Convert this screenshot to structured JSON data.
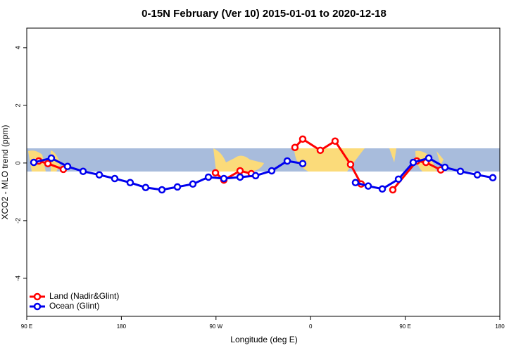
{
  "chart_data": {
    "type": "line",
    "title": "0-15N February (Ver 10)   2015-01-01 to 2020-12-18",
    "xlabel": "Longitude (deg E)",
    "ylabel": "XCO2 - MLO trend (ppm)",
    "xlim": [
      90,
      540
    ],
    "xticks": [
      {
        "value": 90,
        "label": "90 E"
      },
      180,
      {
        "value": 270,
        "label": "90 W"
      },
      {
        "value": 360,
        "label": "0"
      },
      {
        "value": 450,
        "label": "90 E"
      },
      {
        "value": 540,
        "label": "180"
      }
    ],
    "ylim": [
      -5.32,
      4.68
    ],
    "yticks": [
      -4,
      -2,
      0,
      2,
      4
    ],
    "legend": "bottom-left",
    "series": [
      {
        "name": "Land (Nadir&Glint)",
        "color": "#ff0000",
        "x": [
          101.4,
          110.1,
          124.8,
          null,
          269.5,
          277.5,
          292.9,
          303.6,
          null,
          345.1,
          352.5,
          369.2,
          383.3,
          398,
          408.1,
          null,
          438.2,
          461,
          469.7,
          483.8
        ],
        "values": [
          0.07,
          -0.02,
          -0.22,
          null,
          -0.34,
          -0.59,
          -0.27,
          -0.37,
          null,
          0.54,
          0.83,
          0.44,
          0.76,
          -0.05,
          -0.73,
          null,
          -0.93,
          0.07,
          0.02,
          -0.24
        ]
      },
      {
        "name": "Ocean (Glint)",
        "color": "#0000ee",
        "x": [
          96.7,
          113.4,
          128.8,
          143.6,
          159,
          173.7,
          188.4,
          203.1,
          218.6,
          233.3,
          248,
          262.8,
          277.5,
          292.9,
          307.7,
          323,
          337.8,
          352.5,
          null,
          402.7,
          414.8,
          428.2,
          443.6,
          457.6,
          472.4,
          487.8,
          502.5,
          518.6,
          533.3
        ],
        "values": [
          0.02,
          0.17,
          -0.12,
          -0.29,
          -0.41,
          -0.54,
          -0.68,
          -0.85,
          -0.93,
          -0.83,
          -0.73,
          -0.49,
          -0.54,
          -0.49,
          -0.44,
          -0.27,
          0.07,
          -0.02,
          null,
          -0.68,
          -0.8,
          -0.9,
          -0.56,
          0.02,
          0.17,
          -0.15,
          -0.29,
          -0.41,
          -0.51
        ]
      }
    ]
  }
}
